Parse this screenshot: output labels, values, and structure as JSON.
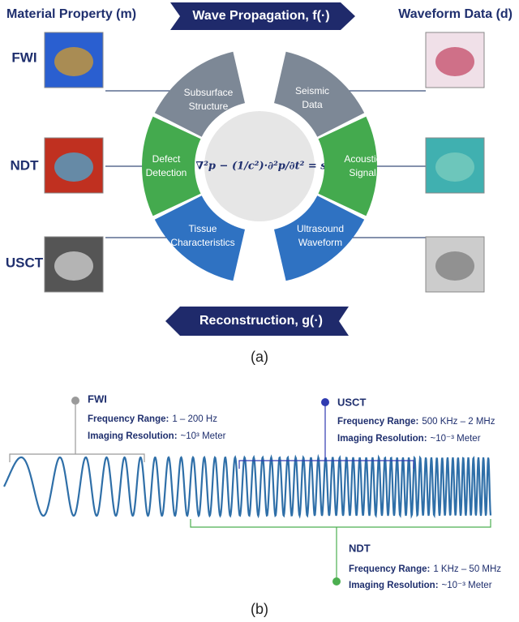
{
  "header": {
    "left": "Material Property (m)",
    "center": "Wave Propagation, f(·)",
    "right": "Waveform Data (d)"
  },
  "rows": [
    {
      "label": "FWI",
      "left_segment": [
        "Subsurface",
        "Structure"
      ],
      "right_segment": [
        "Seismic",
        "Data"
      ]
    },
    {
      "label": "NDT",
      "left_segment": [
        "Defect",
        "Detection"
      ],
      "right_segment": [
        "Acoustic",
        "Signal"
      ]
    },
    {
      "label": "USCT",
      "left_segment": [
        "Tissue",
        "Characteristics"
      ],
      "right_segment": [
        "Ultrasound",
        "Waveform"
      ]
    }
  ],
  "equation": "∇²p − (1/c²)·∂²p/∂t² = s",
  "footer_arrow": "Reconstruction, g(·)",
  "caption_a": "(a)",
  "spectrum": {
    "items": [
      {
        "name": "FWI",
        "range_label": "Frequency Range:",
        "range_value": "1 – 200 Hz",
        "resolution_label": "Imaging Resolution:",
        "resolution_value": "~10³ Meter"
      },
      {
        "name": "USCT",
        "range_label": "Frequency Range:",
        "range_value": "500 KHz – 2 MHz",
        "resolution_label": "Imaging Resolution:",
        "resolution_value": "~10⁻³ Meter"
      },
      {
        "name": "NDT",
        "range_label": "Frequency Range:",
        "range_value": "1 KHz – 50 MHz",
        "resolution_label": "Imaging Resolution:",
        "resolution_value": "~10⁻³ Meter"
      }
    ]
  },
  "caption_b": "(b)"
}
